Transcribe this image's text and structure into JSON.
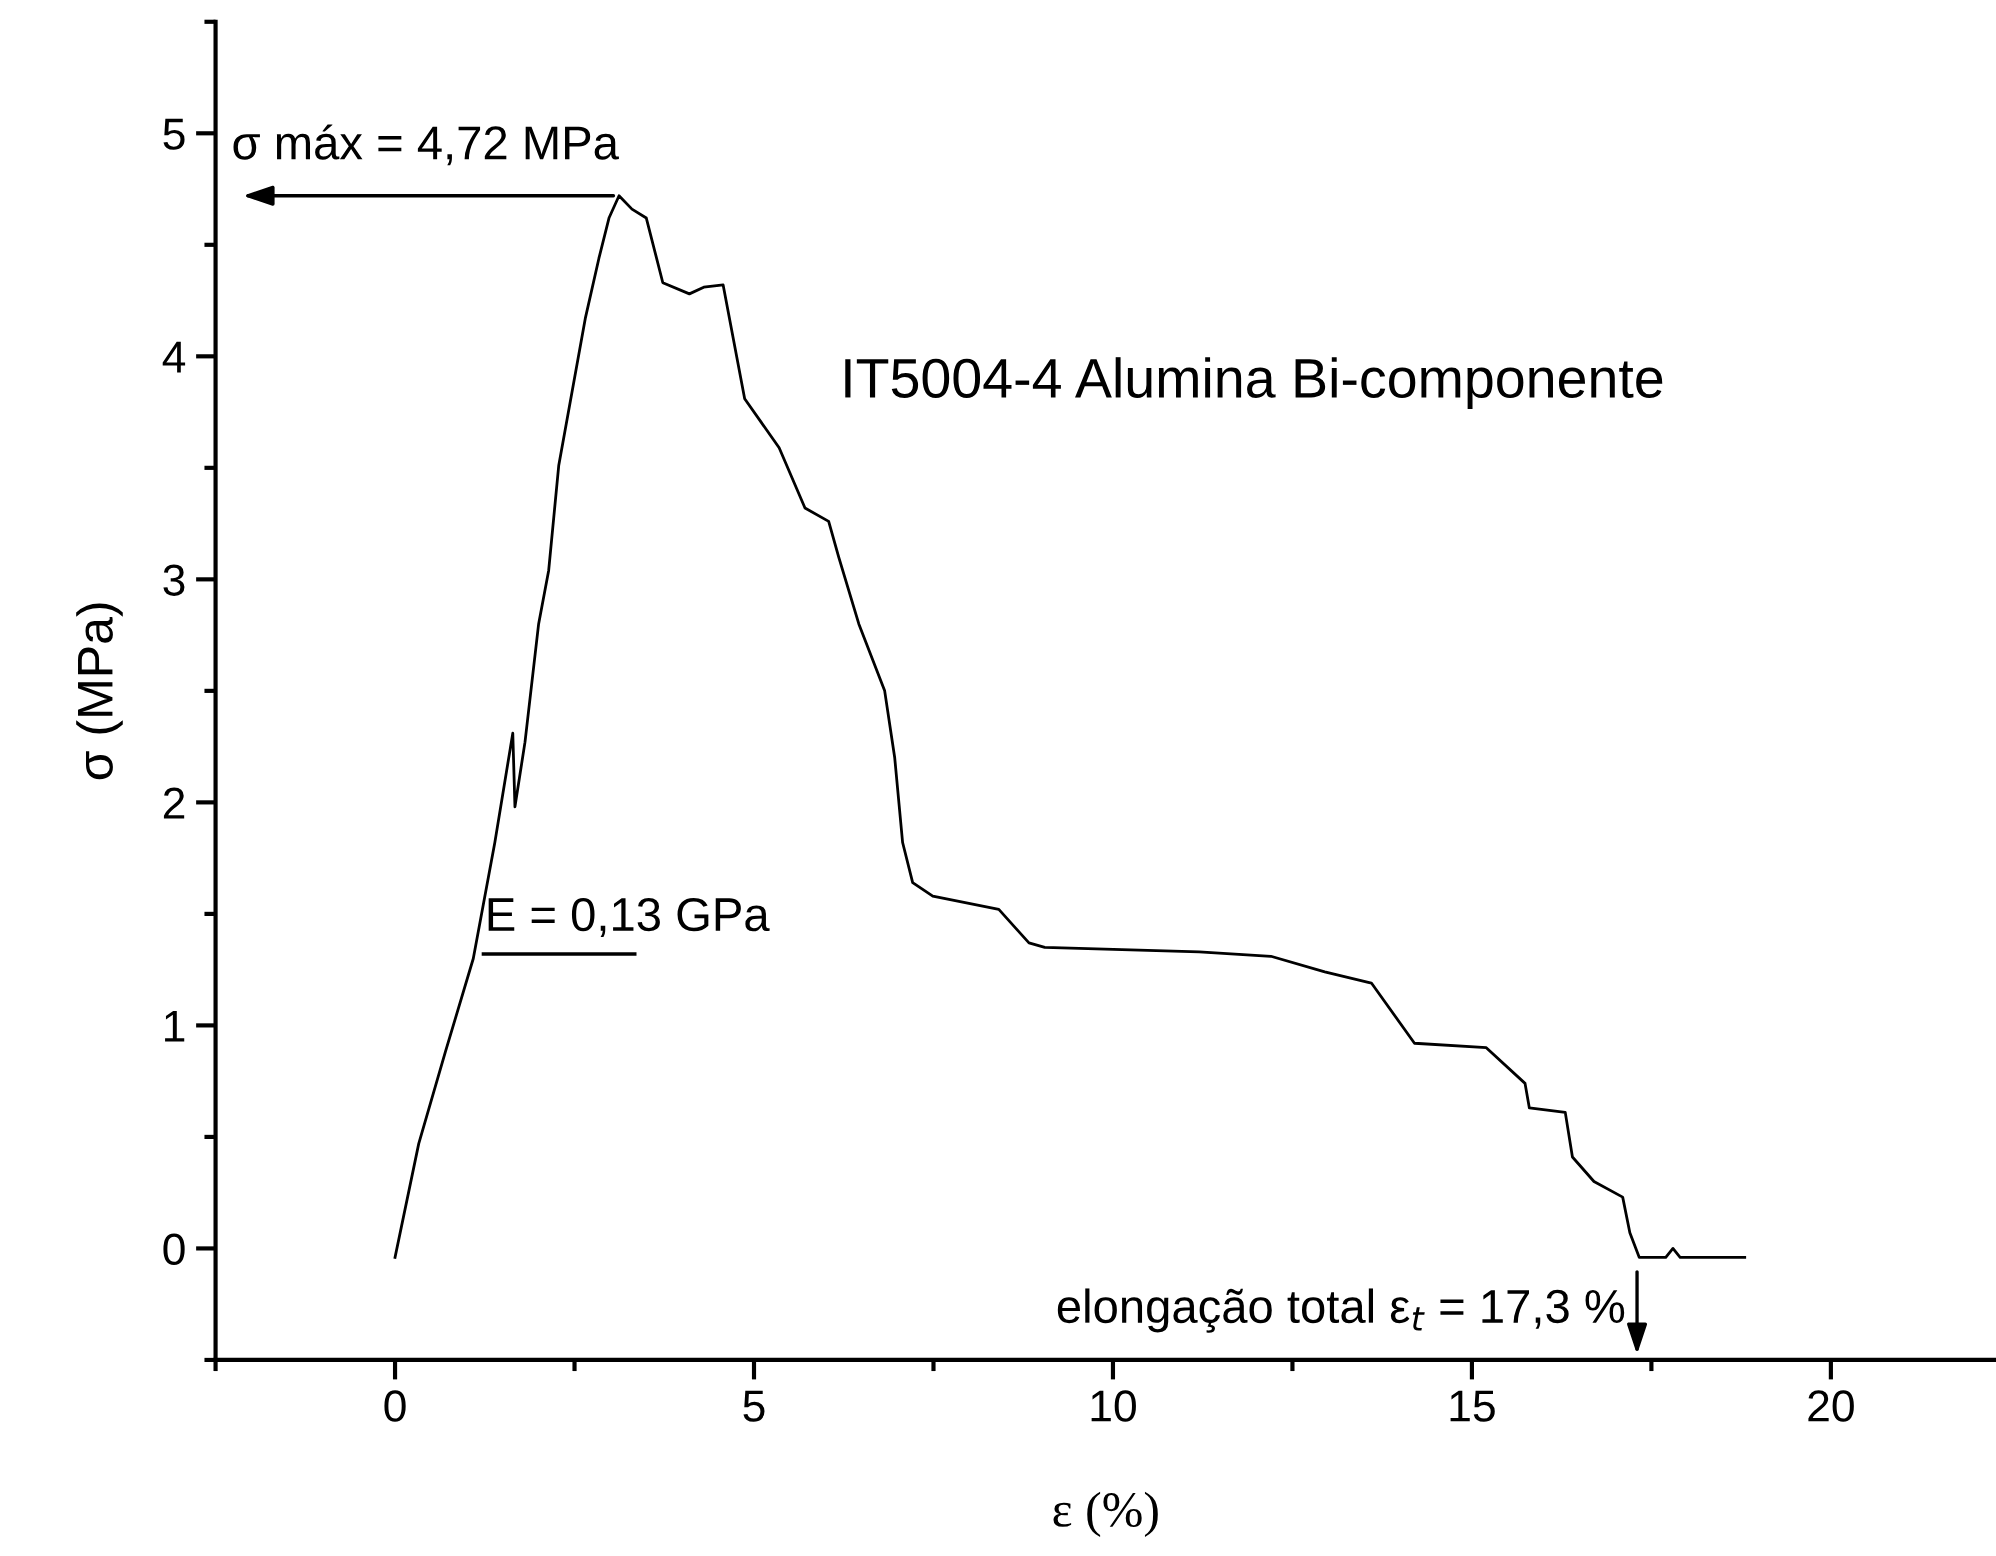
{
  "chart_data": {
    "type": "line",
    "xlabel": "ε (%)",
    "ylabel": "σ (MPa)",
    "xlim": [
      -2.5,
      22.3
    ],
    "ylim": [
      -0.5,
      5.5
    ],
    "xticks": [
      {
        "value": -2.5,
        "label": null
      },
      0,
      {
        "value": 2.5,
        "label": null
      },
      5,
      {
        "value": 7.5,
        "label": null
      },
      10,
      {
        "value": 12.5,
        "label": null
      },
      15,
      {
        "value": 17.5,
        "label": null
      },
      20
    ],
    "yticks": [
      {
        "value": -0.5,
        "label": null
      },
      0,
      {
        "value": 0.5,
        "label": null
      },
      1,
      {
        "value": 1.5,
        "label": null
      },
      2,
      {
        "value": 2.5,
        "label": null
      },
      3,
      {
        "value": 3.5,
        "label": null
      },
      4,
      {
        "value": 4.5,
        "label": null
      },
      5,
      {
        "value": 5.5,
        "label": null
      }
    ],
    "grid": false,
    "legend": false,
    "marker": "none",
    "line_style": "solid",
    "series": [
      {
        "name": "IT5004-4 Alumina Bi-componente",
        "color": "#000000",
        "x": [
          0,
          0.33,
          0.7,
          1.09,
          1.39,
          1.64,
          1.67,
          1.81,
          2.0,
          2.14,
          2.28,
          2.65,
          2.84,
          2.98,
          3.12,
          3.3,
          3.5,
          3.73,
          4.1,
          4.3,
          4.57,
          4.87,
          5.35,
          5.71,
          6.04,
          6.18,
          6.46,
          6.82,
          6.96,
          7.07,
          7.21,
          7.49,
          8.41,
          8.83,
          9.05,
          11.2,
          12.2,
          12.95,
          13.6,
          14.2,
          15.2,
          15.74,
          15.8,
          16.3,
          16.4,
          16.7,
          17.1,
          17.2,
          17.33,
          17.7,
          17.8,
          17.9,
          18.8
        ],
        "values": [
          -0.04,
          0.47,
          0.88,
          1.3,
          1.82,
          2.31,
          1.98,
          2.27,
          2.8,
          3.04,
          3.51,
          4.17,
          4.44,
          4.62,
          4.72,
          4.66,
          4.62,
          4.33,
          4.28,
          4.31,
          4.32,
          3.81,
          3.59,
          3.32,
          3.26,
          3.1,
          2.8,
          2.5,
          2.2,
          1.82,
          1.64,
          1.58,
          1.52,
          1.37,
          1.35,
          1.33,
          1.31,
          1.24,
          1.19,
          0.92,
          0.9,
          0.74,
          0.63,
          0.61,
          0.41,
          0.3,
          0.23,
          0.07,
          -0.04,
          -0.04,
          0.0,
          -0.04,
          -0.04
        ]
      }
    ],
    "annotations": [
      {
        "text": "σ máx = 4,72 MPa",
        "x": 3.12,
        "y": 4.72
      },
      {
        "text": "elongação total ε$_{t}$ = 17,3 %",
        "x": 17.3,
        "y": -0.08
      },
      "E = 0,13 GPa"
    ]
  }
}
